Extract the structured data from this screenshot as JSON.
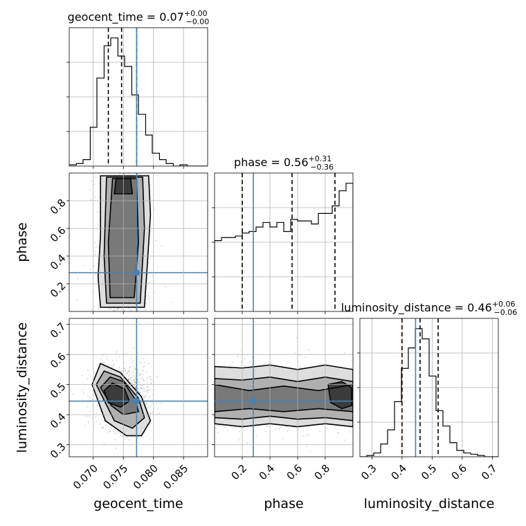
{
  "chart_data": {
    "type": "corner",
    "params": [
      "geocent_time",
      "phase",
      "luminosity_distance"
    ],
    "axis_labels": [
      "geocent_time",
      "phase",
      "luminosity_distance"
    ],
    "ranges": {
      "geocent_time": [
        0.066,
        0.089
      ],
      "phase": [
        0.0,
        1.0
      ],
      "luminosity_distance": [
        0.26,
        0.72
      ]
    },
    "ticks": {
      "geocent_time": [
        0.07,
        0.075,
        0.08,
        0.085
      ],
      "phase": [
        0.2,
        0.4,
        0.6,
        0.8
      ],
      "luminosity_distance": [
        0.3,
        0.4,
        0.5,
        0.6,
        0.7
      ]
    },
    "tick_labels": {
      "geocent_time": [
        "0.070",
        "0.075",
        "0.080",
        "0.085"
      ],
      "phase": [
        "0.2",
        "0.4",
        "0.6",
        "0.8"
      ],
      "luminosity_distance": [
        "0.3",
        "0.4",
        "0.5",
        "0.6",
        "0.7"
      ]
    },
    "titles": [
      {
        "name": "geocent_time",
        "median": "0.07",
        "plus": "+0.00",
        "minus": "−0.00"
      },
      {
        "name": "phase",
        "median": "0.56",
        "plus": "+0.31",
        "minus": "−0.36"
      },
      {
        "name": "luminosity_distance",
        "median": "0.46",
        "plus": "+0.06",
        "minus": "−0.06"
      }
    ],
    "quantiles": {
      "geocent_time": [
        0.0725,
        0.0747,
        0.0772
      ],
      "phase": [
        0.2,
        0.56,
        0.87
      ],
      "luminosity_distance": [
        0.4,
        0.46,
        0.52
      ]
    },
    "truths": {
      "geocent_time": 0.0772,
      "phase": 0.28,
      "luminosity_distance": 0.445
    },
    "histograms": {
      "geocent_time": {
        "edges": [
          0.066,
          0.08,
          0.089
        ],
        "bin_edges": [
          0.066,
          0.0672,
          0.0683,
          0.0695,
          0.0706,
          0.0718,
          0.0729,
          0.0741,
          0.0752,
          0.0764,
          0.0775,
          0.0787,
          0.0798,
          0.081,
          0.0821,
          0.0833,
          0.0844,
          0.0856,
          0.0867,
          0.0879,
          0.089
        ],
        "counts": [
          0.01,
          0.02,
          0.05,
          0.3,
          0.68,
          0.93,
          0.99,
          0.85,
          0.77,
          0.55,
          0.4,
          0.24,
          0.1,
          0.05,
          0.02,
          0.0,
          0.01,
          0.0,
          0.0,
          0.0
        ]
      },
      "phase": {
        "bin_edges": [
          0.0,
          0.05,
          0.1,
          0.15,
          0.2,
          0.25,
          0.3,
          0.35,
          0.4,
          0.45,
          0.5,
          0.55,
          0.6,
          0.65,
          0.7,
          0.75,
          0.8,
          0.85,
          0.9,
          0.95,
          1.0
        ],
        "counts": [
          0.47,
          0.49,
          0.49,
          0.5,
          0.52,
          0.53,
          0.56,
          0.59,
          0.56,
          0.59,
          0.53,
          0.61,
          0.6,
          0.6,
          0.58,
          0.65,
          0.65,
          0.7,
          0.8,
          0.85
        ]
      },
      "luminosity_distance": {
        "bin_edges": [
          0.26,
          0.283,
          0.306,
          0.329,
          0.352,
          0.375,
          0.398,
          0.421,
          0.444,
          0.467,
          0.49,
          0.513,
          0.536,
          0.559,
          0.582,
          0.605,
          0.628,
          0.651,
          0.674,
          0.697,
          0.72
        ],
        "counts": [
          0.0,
          0.01,
          0.03,
          0.1,
          0.21,
          0.43,
          0.69,
          0.85,
          1.0,
          0.92,
          0.63,
          0.36,
          0.24,
          0.11,
          0.05,
          0.03,
          0.02,
          0.01,
          0.0,
          0.0
        ]
      }
    },
    "density_2d": [
      {
        "x": "geocent_time",
        "y": "phase",
        "contours": [
          [
            [
              0.0712,
              0.03
            ],
            [
              0.0708,
              0.25
            ],
            [
              0.0712,
              0.55
            ],
            [
              0.0712,
              0.98
            ],
            [
              0.0792,
              0.98
            ],
            [
              0.0795,
              0.7
            ],
            [
              0.079,
              0.35
            ],
            [
              0.0785,
              0.03
            ]
          ],
          [
            [
              0.0722,
              0.06
            ],
            [
              0.0718,
              0.4
            ],
            [
              0.0722,
              0.97
            ],
            [
              0.0782,
              0.97
            ],
            [
              0.0785,
              0.6
            ],
            [
              0.0778,
              0.06
            ]
          ],
          [
            [
              0.0728,
              0.1
            ],
            [
              0.0725,
              0.5
            ],
            [
              0.0732,
              0.96
            ],
            [
              0.0772,
              0.96
            ],
            [
              0.0775,
              0.5
            ],
            [
              0.0768,
              0.1
            ]
          ],
          [
            [
              0.0735,
              0.85
            ],
            [
              0.0738,
              0.96
            ],
            [
              0.0762,
              0.96
            ],
            [
              0.0765,
              0.85
            ]
          ]
        ]
      },
      {
        "x": "geocent_time",
        "y": "luminosity_distance",
        "contours": [
          [
            [
              0.0698,
              0.5
            ],
            [
              0.0712,
              0.57
            ],
            [
              0.0745,
              0.54
            ],
            [
              0.078,
              0.46
            ],
            [
              0.0795,
              0.38
            ],
            [
              0.078,
              0.33
            ],
            [
              0.0755,
              0.33
            ],
            [
              0.072,
              0.38
            ]
          ],
          [
            [
              0.0705,
              0.5
            ],
            [
              0.0718,
              0.545
            ],
            [
              0.0745,
              0.525
            ],
            [
              0.0775,
              0.455
            ],
            [
              0.0785,
              0.39
            ],
            [
              0.0765,
              0.355
            ],
            [
              0.0735,
              0.38
            ]
          ],
          [
            [
              0.0712,
              0.49
            ],
            [
              0.0728,
              0.525
            ],
            [
              0.075,
              0.51
            ],
            [
              0.077,
              0.45
            ],
            [
              0.0775,
              0.41
            ],
            [
              0.075,
              0.4
            ],
            [
              0.073,
              0.43
            ]
          ],
          [
            [
              0.0718,
              0.48
            ],
            [
              0.0732,
              0.505
            ],
            [
              0.0752,
              0.485
            ],
            [
              0.076,
              0.445
            ],
            [
              0.0745,
              0.425
            ],
            [
              0.0725,
              0.44
            ]
          ]
        ]
      },
      {
        "x": "phase",
        "y": "luminosity_distance",
        "contours": [
          [
            [
              0.0,
              0.56
            ],
            [
              0.2,
              0.555
            ],
            [
              0.4,
              0.565
            ],
            [
              0.6,
              0.55
            ],
            [
              0.8,
              0.565
            ],
            [
              1.0,
              0.55
            ],
            [
              1.0,
              0.36
            ],
            [
              0.8,
              0.37
            ],
            [
              0.6,
              0.36
            ],
            [
              0.4,
              0.37
            ],
            [
              0.2,
              0.36
            ],
            [
              0.0,
              0.37
            ]
          ],
          [
            [
              0.0,
              0.52
            ],
            [
              0.2,
              0.515
            ],
            [
              0.4,
              0.525
            ],
            [
              0.6,
              0.51
            ],
            [
              0.8,
              0.525
            ],
            [
              1.0,
              0.51
            ],
            [
              1.0,
              0.38
            ],
            [
              0.8,
              0.39
            ],
            [
              0.6,
              0.385
            ],
            [
              0.4,
              0.395
            ],
            [
              0.2,
              0.385
            ],
            [
              0.0,
              0.39
            ]
          ],
          [
            [
              0.0,
              0.5
            ],
            [
              0.25,
              0.48
            ],
            [
              0.5,
              0.495
            ],
            [
              0.75,
              0.48
            ],
            [
              1.0,
              0.5
            ],
            [
              1.0,
              0.41
            ],
            [
              0.75,
              0.42
            ],
            [
              0.5,
              0.41
            ],
            [
              0.25,
              0.42
            ],
            [
              0.0,
              0.41
            ]
          ],
          [
            [
              0.82,
              0.5
            ],
            [
              0.92,
              0.51
            ],
            [
              0.99,
              0.49
            ],
            [
              0.99,
              0.43
            ],
            [
              0.92,
              0.42
            ],
            [
              0.84,
              0.44
            ]
          ]
        ]
      }
    ],
    "grid": true
  }
}
